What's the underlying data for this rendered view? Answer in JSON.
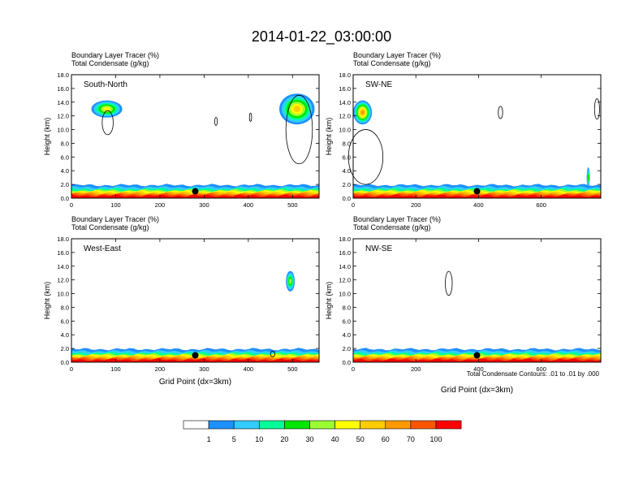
{
  "title": "2014-01-22_03:00:00",
  "footnote": "Total Condensate Contours: .01 to .01 by .000",
  "colorbar": {
    "colors": [
      "#ffffff",
      "#1e90ff",
      "#33ccff",
      "#00ff99",
      "#00e600",
      "#99ff33",
      "#ffff00",
      "#ffcc00",
      "#ff9900",
      "#ff5500",
      "#ff0000"
    ],
    "labels": [
      "1",
      "5",
      "10",
      "20",
      "30",
      "40",
      "50",
      "60",
      "70",
      "100"
    ]
  },
  "chart_data": [
    {
      "type": "heatmap",
      "name": "South-North",
      "label_line1": "Boundary Layer Tracer   (%)",
      "label_line2": "Total Condensate   (g/kg)",
      "ylabel": "Height (km)",
      "xlabel": "",
      "xlim": [
        0,
        560
      ],
      "ylim": [
        0,
        18
      ],
      "xticks": [
        "0",
        "100",
        "200",
        "300",
        "400",
        "500"
      ],
      "yticks": [
        "0.0",
        "2.0",
        "4.0",
        "6.0",
        "8.0",
        "10.0",
        "12.0",
        "14.0",
        "16.0",
        "18.0"
      ],
      "marker": {
        "x": 280,
        "y": 1.0
      },
      "clouds": [
        {
          "x": 80,
          "y": 13.0,
          "w": 70,
          "h": 2.5,
          "peak": 40
        },
        {
          "x": 510,
          "y": 13.0,
          "w": 80,
          "h": 4.5,
          "peak": 55
        }
      ],
      "contours": [
        {
          "x": 82,
          "y": 11.0,
          "w": 25,
          "h": 3.5
        },
        {
          "x": 327,
          "y": 11.2,
          "w": 6,
          "h": 1.2
        },
        {
          "x": 405,
          "y": 11.8,
          "w": 5,
          "h": 1.2
        },
        {
          "x": 515,
          "y": 10.0,
          "w": 60,
          "h": 10.0
        }
      ]
    },
    {
      "type": "heatmap",
      "name": "SW-NE",
      "label_line1": "Boundary Layer Tracer   (%)",
      "label_line2": "Total Condensate   (g/kg)",
      "ylabel": "Height (km)",
      "xlabel": "",
      "xlim": [
        0,
        790
      ],
      "ylim": [
        0,
        18
      ],
      "xticks": [
        "0",
        "200",
        "400",
        "600"
      ],
      "yticks": [
        "0.0",
        "2.0",
        "4.0",
        "6.0",
        "8.0",
        "10.0",
        "12.0",
        "14.0",
        "16.0",
        "18.0"
      ],
      "marker": {
        "x": 395,
        "y": 1.0
      },
      "clouds": [
        {
          "x": 30,
          "y": 12.5,
          "w": 60,
          "h": 3.5,
          "peak": 60
        },
        {
          "x": 750,
          "y": 3.0,
          "w": 10,
          "h": 3.0,
          "peak": 20
        }
      ],
      "contours": [
        {
          "x": 40,
          "y": 6.0,
          "w": 110,
          "h": 8.0
        },
        {
          "x": 470,
          "y": 12.5,
          "w": 14,
          "h": 1.8
        },
        {
          "x": 778,
          "y": 13.0,
          "w": 16,
          "h": 3.0
        }
      ]
    },
    {
      "type": "heatmap",
      "name": "West-East",
      "label_line1": "Boundary Layer Tracer   (%)",
      "label_line2": "Total Condensate   (g/kg)",
      "ylabel": "Height (km)",
      "xlabel": "Grid Point (dx=3km)",
      "xlim": [
        0,
        560
      ],
      "ylim": [
        0,
        18
      ],
      "xticks": [
        "0",
        "100",
        "200",
        "300",
        "400",
        "500"
      ],
      "yticks": [
        "0.0",
        "2.0",
        "4.0",
        "6.0",
        "8.0",
        "10.0",
        "12.0",
        "14.0",
        "16.0",
        "18.0"
      ],
      "marker": {
        "x": 280,
        "y": 1.0
      },
      "clouds": [
        {
          "x": 495,
          "y": 11.8,
          "w": 20,
          "h": 3.0,
          "peak": 30
        }
      ],
      "contours": [
        {
          "x": 455,
          "y": 1.2,
          "w": 10,
          "h": 0.8
        }
      ]
    },
    {
      "type": "heatmap",
      "name": "NW-SE",
      "label_line1": "Boundary Layer Tracer   (%)",
      "label_line2": "Total Condensate   (g/kg)",
      "ylabel": "Height (km)",
      "xlabel": "Grid Point (dx=3km)",
      "xlim": [
        0,
        790
      ],
      "ylim": [
        0,
        18
      ],
      "xticks": [
        "0",
        "200",
        "400",
        "600"
      ],
      "yticks": [
        "0.0",
        "2.0",
        "4.0",
        "6.0",
        "8.0",
        "10.0",
        "12.0",
        "14.0",
        "16.0",
        "18.0"
      ],
      "marker": {
        "x": 395,
        "y": 1.0
      },
      "clouds": [],
      "contours": [
        {
          "x": 305,
          "y": 11.5,
          "w": 22,
          "h": 3.5
        }
      ]
    }
  ]
}
